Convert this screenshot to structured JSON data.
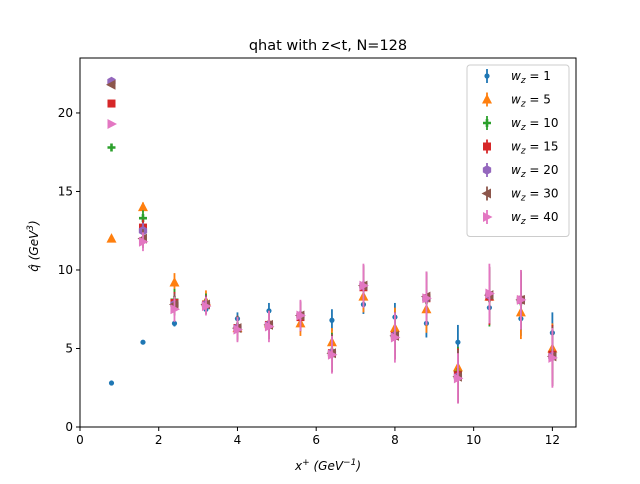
{
  "chart_data": {
    "type": "scatter",
    "title": "qhat with z<t, N=128",
    "xlabel_base": "x",
    "xlabel_sup": "+",
    "xlabel_unit": "(GeV",
    "xlabel_unit_exp": "−1",
    "xlabel_close": ")",
    "ylabel_base": "q̂",
    "ylabel_unit": "(GeV",
    "ylabel_unit_exp": "3",
    "ylabel_close": ")",
    "xlim": [
      0,
      12.6
    ],
    "ylim": [
      0,
      23.5
    ],
    "xticks": [
      0,
      2,
      4,
      6,
      8,
      10,
      12
    ],
    "yticks": [
      0,
      5,
      10,
      15,
      20
    ],
    "grid": false,
    "legend_position": "top-right",
    "series": [
      {
        "name": "w_z = 1",
        "legend_base": "w",
        "legend_sub": "z",
        "legend_rest": " = 1",
        "color": "#1f77b4",
        "marker": "point",
        "x": [
          0.8,
          1.6,
          2.4,
          3.2,
          4.0,
          4.8,
          5.6,
          6.4,
          7.2,
          8.0,
          8.8,
          9.6,
          10.4,
          11.2,
          12.0
        ],
        "y": [
          2.8,
          5.4,
          6.6,
          7.5,
          6.9,
          7.4,
          7.0,
          6.8,
          7.8,
          7.0,
          6.6,
          5.4,
          7.6,
          6.9,
          6.0
        ],
        "err": [
          0.1,
          0.1,
          0.2,
          0.3,
          0.4,
          0.5,
          0.5,
          0.7,
          0.6,
          0.9,
          0.9,
          1.1,
          1.0,
          1.1,
          1.3
        ]
      },
      {
        "name": "w_z = 5",
        "legend_base": "w",
        "legend_sub": "z",
        "legend_rest": " = 5",
        "color": "#ff7f0e",
        "marker": "triangle-up",
        "x": [
          0.8,
          1.6,
          2.4,
          3.2,
          4.0,
          4.8,
          5.6,
          6.4,
          7.2,
          8.0,
          8.8,
          9.6,
          10.4,
          11.2,
          12.0
        ],
        "y": [
          12.0,
          14.0,
          9.2,
          8.0,
          6.3,
          6.6,
          6.6,
          5.4,
          8.3,
          6.3,
          7.5,
          3.8,
          8.3,
          7.3,
          5.0
        ],
        "err": [
          0.1,
          0.3,
          0.6,
          0.7,
          0.6,
          0.8,
          0.8,
          0.9,
          1.0,
          1.3,
          1.5,
          1.3,
          1.6,
          1.7,
          1.6
        ]
      },
      {
        "name": "w_z = 10",
        "legend_base": "w",
        "legend_sub": "z",
        "legend_rest": " = 10",
        "color": "#2ca02c",
        "marker": "plus",
        "x": [
          0.8,
          1.6,
          2.4,
          3.2,
          4.0,
          4.8,
          5.6,
          6.4,
          7.2,
          8.0,
          8.8,
          9.6,
          10.4,
          11.2,
          12.0
        ],
        "y": [
          17.8,
          13.3,
          8.1,
          7.9,
          6.4,
          6.5,
          7.0,
          4.8,
          8.9,
          5.9,
          8.1,
          3.5,
          8.2,
          8.0,
          4.7
        ],
        "err": [
          0.1,
          0.5,
          0.7,
          0.6,
          0.7,
          0.9,
          0.9,
          1.2,
          1.2,
          1.4,
          1.5,
          1.6,
          1.8,
          1.8,
          1.8
        ]
      },
      {
        "name": "w_z = 15",
        "legend_base": "w",
        "legend_sub": "z",
        "legend_rest": " = 15",
        "color": "#d62728",
        "marker": "square",
        "x": [
          0.8,
          1.6,
          2.4,
          3.2,
          4.0,
          4.8,
          5.6,
          6.4,
          7.2,
          8.0,
          8.8,
          9.6,
          10.4,
          11.2,
          12.0
        ],
        "y": [
          20.6,
          12.7,
          7.9,
          7.8,
          6.3,
          6.5,
          7.0,
          4.7,
          8.9,
          5.8,
          8.2,
          3.3,
          8.3,
          8.1,
          4.6
        ],
        "err": [
          0.1,
          0.5,
          0.7,
          0.6,
          0.7,
          0.9,
          0.9,
          1.2,
          1.3,
          1.5,
          1.6,
          1.7,
          1.8,
          1.8,
          1.9
        ]
      },
      {
        "name": "w_z = 20",
        "legend_base": "w",
        "legend_sub": "z",
        "legend_rest": " = 20",
        "color": "#9467bd",
        "marker": "hexagon",
        "x": [
          0.8,
          1.6,
          2.4,
          3.2,
          4.0,
          4.8,
          5.6,
          6.4,
          7.2,
          8.0,
          8.8,
          9.6,
          10.4,
          11.2,
          12.0
        ],
        "y": [
          22.0,
          12.5,
          7.8,
          7.8,
          6.3,
          6.5,
          7.1,
          4.7,
          9.0,
          5.8,
          8.2,
          3.2,
          8.4,
          8.1,
          4.5
        ],
        "err": [
          0.1,
          0.5,
          0.7,
          0.6,
          0.7,
          0.9,
          0.9,
          1.2,
          1.3,
          1.5,
          1.6,
          1.7,
          1.8,
          1.8,
          1.9
        ]
      },
      {
        "name": "w_z = 30",
        "legend_base": "w",
        "legend_sub": "z",
        "legend_rest": " = 30",
        "color": "#8c564b",
        "marker": "triangle-left",
        "x": [
          0.8,
          1.6,
          2.4,
          3.2,
          4.0,
          4.8,
          5.6,
          6.4,
          7.2,
          8.0,
          8.8,
          9.6,
          10.4,
          11.2,
          12.0
        ],
        "y": [
          21.8,
          12.0,
          7.8,
          7.8,
          6.3,
          6.5,
          7.1,
          4.7,
          9.0,
          5.8,
          8.3,
          3.2,
          8.4,
          8.1,
          4.5
        ],
        "err": [
          0.1,
          0.6,
          0.7,
          0.6,
          0.8,
          0.9,
          0.9,
          1.2,
          1.3,
          1.5,
          1.6,
          1.7,
          1.8,
          1.9,
          1.9
        ]
      },
      {
        "name": "w_z = 40",
        "legend_base": "w",
        "legend_sub": "z",
        "legend_rest": " = 40",
        "color": "#e377c2",
        "marker": "triangle-right",
        "x": [
          0.8,
          1.6,
          2.4,
          3.2,
          4.0,
          4.8,
          5.6,
          6.4,
          7.2,
          8.0,
          8.8,
          9.6,
          10.4,
          11.2,
          12.0
        ],
        "y": [
          19.3,
          11.8,
          7.5,
          7.7,
          6.2,
          6.4,
          7.1,
          4.6,
          9.0,
          5.7,
          8.2,
          3.1,
          8.5,
          8.1,
          4.4
        ],
        "err": [
          0.1,
          0.6,
          0.8,
          0.6,
          0.8,
          1.0,
          1.0,
          1.2,
          1.4,
          1.6,
          1.7,
          1.6,
          1.9,
          1.9,
          1.9
        ]
      }
    ]
  }
}
